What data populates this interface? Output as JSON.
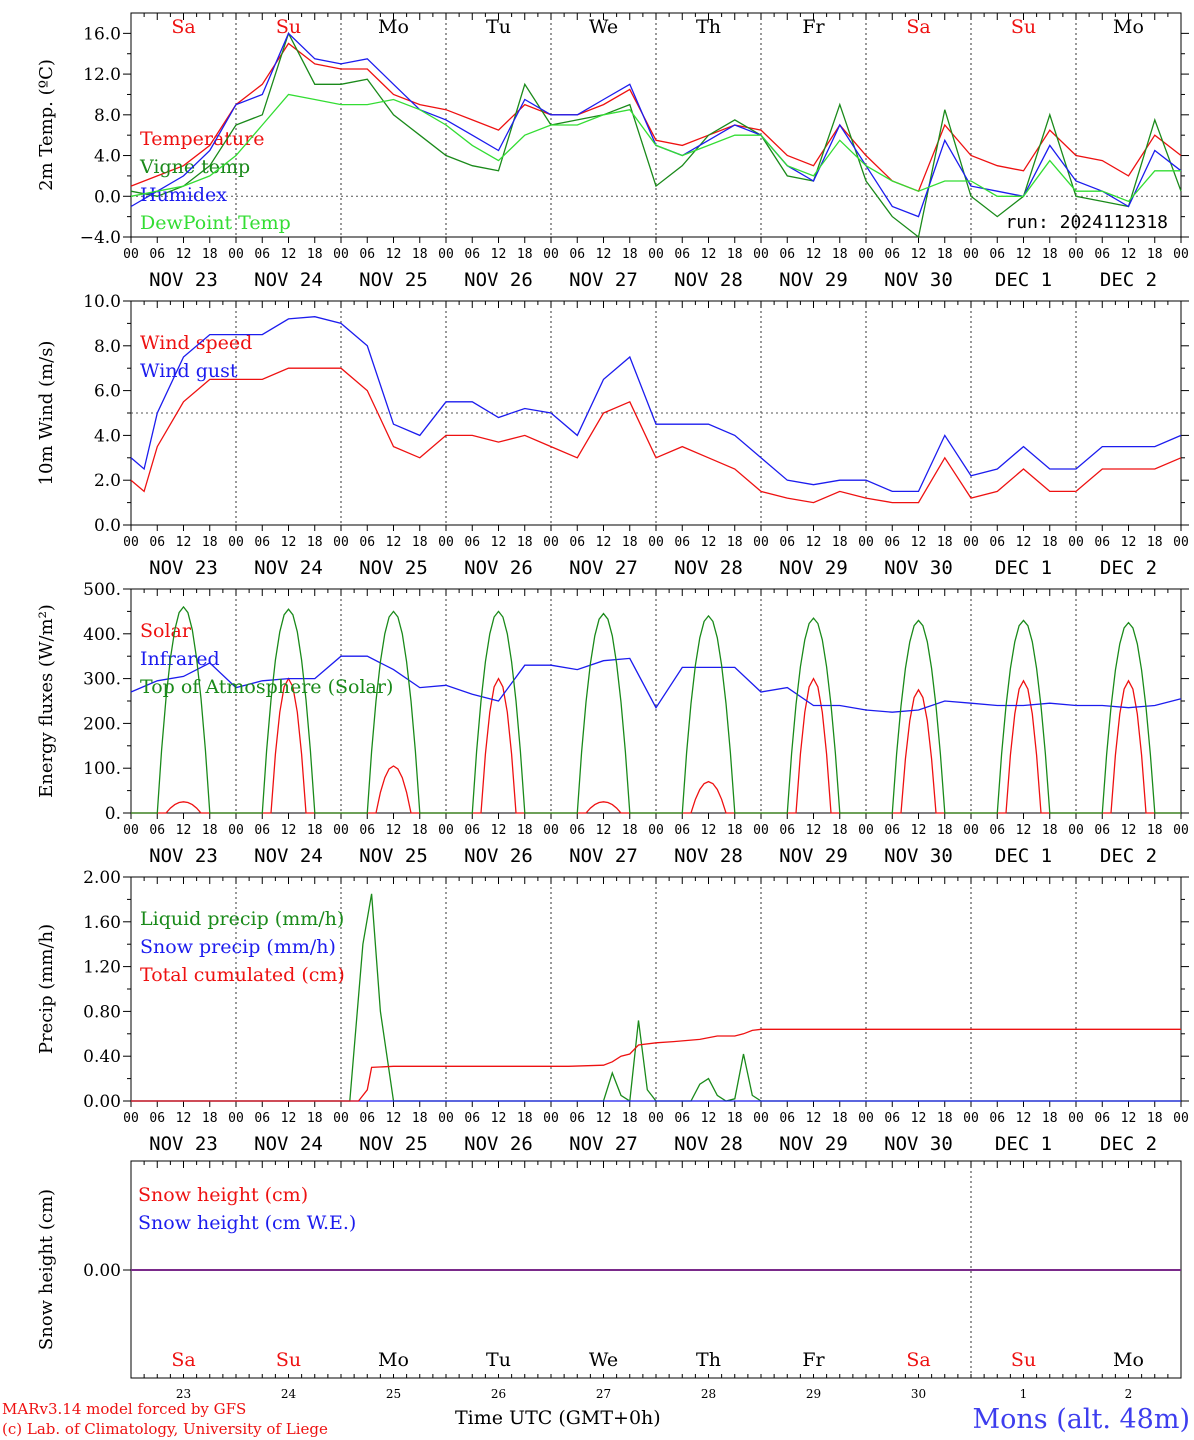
{
  "colors": {
    "red": "#ee1111",
    "green": "#1a8a1a",
    "blue": "#1c1cee",
    "lightgreen": "#33dd33",
    "purple": "#7a2a8a",
    "axis": "#000000"
  },
  "x_axis": {
    "hour_ticks": [
      "00",
      "06",
      "12",
      "18"
    ],
    "date_labels": [
      "NOV 23",
      "NOV 24",
      "NOV 25",
      "NOV 26",
      "NOV 27",
      "NOV 28",
      "NOV 29",
      "NOV 30",
      "DEC  1",
      "DEC  2"
    ],
    "day_names": [
      "Sa",
      "Su",
      "Mo",
      "Tu",
      "We",
      "Th",
      "Fr",
      "Sa",
      "Su",
      "Mo"
    ],
    "weekend_days": [
      0,
      1,
      7,
      8
    ],
    "day_numbers": [
      "23",
      "24",
      "25",
      "26",
      "27",
      "28",
      "29",
      "30",
      "1",
      "2"
    ],
    "title": "Time UTC (GMT+0h)"
  },
  "footer": {
    "credit_1": "MARv3.14 model forced by GFS",
    "credit_2": "(c) Lab. of Climatology, University of Liege",
    "location": "Mons (alt. 48m)"
  },
  "chart_data": [
    {
      "id": "temperature",
      "type": "line",
      "ylabel": "2m Temp. (ºC)",
      "ylim": [
        -4,
        18
      ],
      "yticks": [
        -4,
        0,
        4,
        8,
        12,
        16
      ],
      "yticklabels": [
        "−4.0",
        "0.0",
        "4.0",
        "8.0",
        "12.0",
        "16.0"
      ],
      "reference_line": 0,
      "annotation": "run: 2024112318",
      "x_unit": "hours since NOV 23 00 UTC",
      "series": [
        {
          "name": "Temperature",
          "color": "red",
          "x": [
            0,
            6,
            12,
            18,
            24,
            30,
            36,
            42,
            48,
            54,
            60,
            66,
            72,
            78,
            84,
            90,
            96,
            102,
            108,
            114,
            120,
            126,
            132,
            138,
            144,
            150,
            156,
            162,
            168,
            174,
            180,
            186,
            192,
            198,
            204,
            210,
            216,
            222,
            228,
            234,
            240
          ],
          "values": [
            1,
            2,
            3,
            5,
            9,
            11,
            15,
            13,
            12.5,
            12.5,
            10,
            9,
            8.5,
            7.5,
            6.5,
            9,
            8,
            8,
            9,
            10.5,
            5.5,
            5,
            6,
            7,
            6.5,
            4,
            3,
            7,
            4,
            1.5,
            0.5,
            7,
            4,
            3,
            2.5,
            6.5,
            4,
            3.5,
            2,
            6,
            4
          ]
        },
        {
          "name": "Vigne temp",
          "color": "green",
          "x": [
            0,
            6,
            12,
            18,
            24,
            30,
            36,
            42,
            48,
            54,
            60,
            66,
            72,
            78,
            84,
            90,
            96,
            102,
            108,
            114,
            120,
            126,
            132,
            138,
            144,
            150,
            156,
            162,
            168,
            174,
            180,
            186,
            192,
            198,
            204,
            210,
            216,
            222,
            228,
            234,
            240
          ],
          "values": [
            0.5,
            0,
            1,
            3,
            7,
            8,
            16,
            11,
            11,
            11.5,
            8,
            6,
            4,
            3,
            2.5,
            11,
            7,
            7.5,
            8,
            9,
            1,
            3,
            6,
            7.5,
            6,
            2,
            1.5,
            9,
            1.5,
            -2,
            -4,
            8.5,
            0,
            -2,
            0,
            8,
            0,
            -0.5,
            -1,
            7.5,
            0.5
          ]
        },
        {
          "name": "Humidex",
          "color": "blue",
          "x": [
            0,
            6,
            12,
            18,
            24,
            30,
            36,
            42,
            48,
            54,
            60,
            66,
            72,
            78,
            84,
            90,
            96,
            102,
            108,
            114,
            120,
            126,
            132,
            138,
            144,
            150,
            156,
            162,
            168,
            174,
            180,
            186,
            192,
            198,
            204,
            210,
            216,
            222,
            228,
            234,
            240
          ],
          "values": [
            -1,
            0.5,
            2,
            4.5,
            9,
            10,
            16,
            13.5,
            13,
            13.5,
            11,
            8.5,
            7.5,
            6,
            4.5,
            9.5,
            8,
            8,
            9.5,
            11,
            5,
            4,
            5.5,
            7,
            6,
            3,
            1.5,
            7,
            3,
            -1,
            -2,
            5.5,
            1,
            0.5,
            0,
            5,
            1.5,
            0.5,
            -1,
            4.5,
            2.5
          ]
        },
        {
          "name": "DewPoint Temp",
          "color": "lightgreen",
          "x": [
            0,
            6,
            12,
            18,
            24,
            30,
            36,
            42,
            48,
            54,
            60,
            66,
            72,
            78,
            84,
            90,
            96,
            102,
            108,
            114,
            120,
            126,
            132,
            138,
            144,
            150,
            156,
            162,
            168,
            174,
            180,
            186,
            192,
            198,
            204,
            210,
            216,
            222,
            228,
            234,
            240
          ],
          "values": [
            0,
            0.5,
            1,
            2,
            4,
            7,
            10,
            9.5,
            9,
            9,
            9.5,
            8.5,
            7,
            5,
            3.5,
            6,
            7,
            7,
            8,
            8.5,
            5,
            4,
            5,
            6,
            6,
            3,
            2,
            5.5,
            3,
            1.5,
            0.5,
            1.5,
            1.5,
            0,
            0,
            3.5,
            0.5,
            0.5,
            -0.5,
            2.5,
            2.5
          ]
        }
      ]
    },
    {
      "id": "wind",
      "type": "line",
      "ylabel": "10m Wind (m/s)",
      "ylim": [
        0,
        10
      ],
      "yticks": [
        0,
        2,
        4,
        6,
        8,
        10
      ],
      "yticklabels": [
        "0.0",
        "2.0",
        "4.0",
        "6.0",
        "8.0",
        "10.0"
      ],
      "reference_line": 5,
      "x_unit": "hours since NOV 23 00 UTC",
      "series": [
        {
          "name": "Wind speed",
          "color": "red",
          "x": [
            0,
            3,
            6,
            12,
            18,
            24,
            30,
            36,
            42,
            48,
            54,
            60,
            66,
            72,
            78,
            84,
            90,
            96,
            102,
            108,
            114,
            120,
            126,
            132,
            138,
            144,
            150,
            156,
            162,
            168,
            174,
            180,
            186,
            192,
            198,
            204,
            210,
            216,
            222,
            228,
            234,
            240
          ],
          "values": [
            2,
            1.5,
            3.5,
            5.5,
            6.5,
            6.5,
            6.5,
            7,
            7,
            7,
            6,
            3.5,
            3,
            4,
            4,
            3.7,
            4,
            3.5,
            3,
            5,
            5.5,
            3,
            3.5,
            3,
            2.5,
            1.5,
            1.2,
            1,
            1.5,
            1.2,
            1,
            1,
            3,
            1.2,
            1.5,
            2.5,
            1.5,
            1.5,
            2.5,
            2.5,
            2.5,
            3
          ]
        },
        {
          "name": "Wind gust",
          "color": "blue",
          "x": [
            0,
            3,
            6,
            12,
            18,
            24,
            30,
            36,
            42,
            48,
            54,
            60,
            66,
            72,
            78,
            84,
            90,
            96,
            102,
            108,
            114,
            120,
            126,
            132,
            138,
            144,
            150,
            156,
            162,
            168,
            174,
            180,
            186,
            192,
            198,
            204,
            210,
            216,
            222,
            228,
            234,
            240
          ],
          "values": [
            3,
            2.5,
            5,
            7.5,
            8.5,
            8.5,
            8.5,
            9.2,
            9.3,
            9,
            8,
            4.5,
            4,
            5.5,
            5.5,
            4.8,
            5.2,
            5,
            4,
            6.5,
            7.5,
            4.5,
            4.5,
            4.5,
            4,
            3,
            2,
            1.8,
            2,
            2,
            1.5,
            1.5,
            4,
            2.2,
            2.5,
            3.5,
            2.5,
            2.5,
            3.5,
            3.5,
            3.5,
            4
          ]
        }
      ]
    },
    {
      "id": "energy",
      "type": "line",
      "ylabel": "Energy fluxes (W/m²)",
      "ylim": [
        0,
        500
      ],
      "yticks": [
        0,
        100,
        200,
        300,
        400,
        500
      ],
      "yticklabels": [
        "0.",
        "100.",
        "200.",
        "300.",
        "400.",
        "500."
      ],
      "x_unit": "hours since NOV 23 00 UTC",
      "series": [
        {
          "name": "Solar",
          "color": "red",
          "peaks": [
            25,
            300,
            105,
            300,
            25,
            70,
            300,
            275,
            295,
            295
          ]
        },
        {
          "name": "Infrared",
          "color": "blue",
          "x": [
            0,
            6,
            12,
            18,
            24,
            30,
            36,
            42,
            48,
            54,
            60,
            66,
            72,
            78,
            84,
            90,
            96,
            102,
            108,
            114,
            120,
            126,
            132,
            138,
            144,
            150,
            156,
            162,
            168,
            174,
            180,
            186,
            192,
            198,
            204,
            210,
            216,
            222,
            228,
            234,
            240
          ],
          "values": [
            270,
            295,
            305,
            335,
            280,
            295,
            300,
            300,
            350,
            350,
            320,
            280,
            285,
            265,
            250,
            330,
            330,
            320,
            340,
            345,
            235,
            325,
            325,
            325,
            270,
            280,
            240,
            240,
            230,
            225,
            230,
            250,
            245,
            240,
            240,
            245,
            240,
            240,
            235,
            240,
            255
          ]
        },
        {
          "name": "Top of Atmosphere (Solar)",
          "color": "green",
          "peaks": [
            460,
            455,
            450,
            450,
            445,
            440,
            435,
            430,
            430,
            425
          ]
        }
      ]
    },
    {
      "id": "precip",
      "type": "line",
      "ylabel": "Precip (mm/h)",
      "ylim": [
        0,
        2
      ],
      "yticks": [
        0,
        0.4,
        0.8,
        1.2,
        1.6,
        2.0
      ],
      "yticklabels": [
        "0.00",
        "0.40",
        "0.80",
        "1.20",
        "1.60",
        "2.00"
      ],
      "x_unit": "hours since NOV 23 00 UTC",
      "series": [
        {
          "name": "Liquid precip (mm/h)",
          "color": "green",
          "x": [
            0,
            50,
            53,
            55,
            57,
            60,
            100,
            108,
            110,
            112,
            114,
            116,
            118,
            120,
            128,
            130,
            132,
            134,
            136,
            138,
            140,
            142,
            144,
            146,
            240
          ],
          "values": [
            0,
            0,
            1.4,
            1.85,
            0.8,
            0,
            0,
            0,
            0.25,
            0.05,
            0,
            0.72,
            0.1,
            0,
            0,
            0.15,
            0.2,
            0.05,
            0,
            0.02,
            0.42,
            0.05,
            0,
            0,
            0
          ]
        },
        {
          "name": "Snow precip (mm/h)",
          "color": "blue",
          "x": [
            0,
            240
          ],
          "values": [
            0,
            0
          ]
        },
        {
          "name": "Total cumulated (cm)",
          "color": "red",
          "x": [
            0,
            52,
            54,
            55,
            60,
            100,
            108,
            110,
            112,
            114,
            116,
            120,
            124,
            130,
            134,
            138,
            140,
            142,
            144,
            240
          ],
          "values": [
            0,
            0,
            0.1,
            0.3,
            0.31,
            0.31,
            0.32,
            0.35,
            0.4,
            0.42,
            0.5,
            0.52,
            0.53,
            0.55,
            0.58,
            0.58,
            0.6,
            0.63,
            0.64,
            0.64
          ]
        }
      ]
    },
    {
      "id": "snow",
      "type": "line",
      "ylabel": "Snow height (cm)",
      "yticks": [
        0
      ],
      "yticklabels": [
        "0.00"
      ],
      "x_unit": "hours since NOV 23 00 UTC",
      "series": [
        {
          "name": "Snow height (cm)",
          "color": "red",
          "x": [
            0,
            240
          ],
          "values": [
            0,
            0
          ]
        },
        {
          "name": "Snow height (cm W.E.)",
          "color": "blue",
          "x": [
            0,
            240
          ],
          "values": [
            0,
            0
          ]
        }
      ]
    }
  ]
}
